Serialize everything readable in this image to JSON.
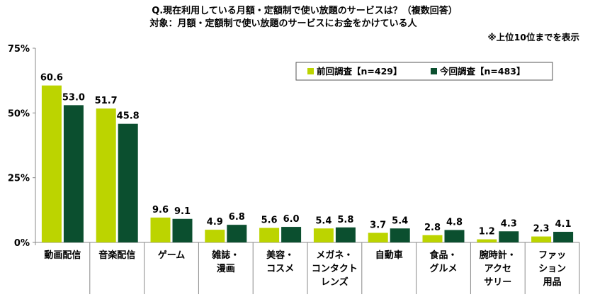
{
  "chart_data": {
    "type": "bar",
    "title": "Q.現在利用している月額・定額制で使い放題のサービスは？（複数回答）",
    "subtitle": "対象：月額・定額制で使い放題のサービスにお金をかけている人",
    "note": "※上位10位までを表示",
    "categories": [
      [
        "動画配信"
      ],
      [
        "音楽配信"
      ],
      [
        "ゲーム"
      ],
      [
        "雑誌・",
        "漫画"
      ],
      [
        "美容・",
        "コスメ"
      ],
      [
        "メガネ・",
        "コンタクト",
        "レンズ"
      ],
      [
        "自動車"
      ],
      [
        "食品・",
        "グルメ"
      ],
      [
        "腕時計・",
        "アクセ",
        "サリー"
      ],
      [
        "ファッ",
        "ション",
        "用品"
      ]
    ],
    "series": [
      {
        "name": "前回調査【n=429】",
        "color": "#bcd400",
        "values": [
          60.6,
          51.7,
          9.6,
          4.9,
          5.6,
          5.4,
          3.7,
          2.8,
          1.2,
          2.3
        ]
      },
      {
        "name": "今回調査【n=483】",
        "color": "#0b4f2f",
        "values": [
          53.0,
          45.8,
          9.1,
          6.8,
          6.0,
          5.8,
          5.4,
          4.8,
          4.3,
          4.1
        ]
      }
    ],
    "ylim": [
      0,
      75
    ],
    "yticks": [
      0,
      25,
      50,
      75
    ],
    "ytick_labels": [
      "0%",
      "25%",
      "50%",
      "75%"
    ],
    "legend": "top-right",
    "grid": false
  }
}
